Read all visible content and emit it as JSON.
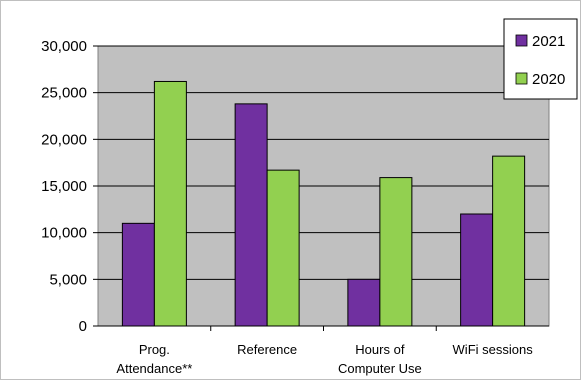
{
  "chart_data": {
    "type": "bar",
    "categories": [
      [
        "Prog.",
        "Attendance**"
      ],
      [
        "Reference"
      ],
      [
        "Hours of",
        "Computer Use"
      ],
      [
        "WiFi sessions"
      ]
    ],
    "series": [
      {
        "name": "2021",
        "color": "#7030a0",
        "values": [
          11000,
          23800,
          5000,
          12000
        ]
      },
      {
        "name": "2020",
        "color": "#92d050",
        "values": [
          26200,
          16700,
          15900,
          18200
        ]
      }
    ],
    "yticks": [
      "0",
      "5,000",
      "10,000",
      "15,000",
      "20,000",
      "25,000",
      "30,000"
    ],
    "ylim": [
      0,
      30000
    ],
    "ytick_step": 5000,
    "grid": true,
    "plot_background": "#c0c0c0",
    "legend_position": "top-right"
  }
}
